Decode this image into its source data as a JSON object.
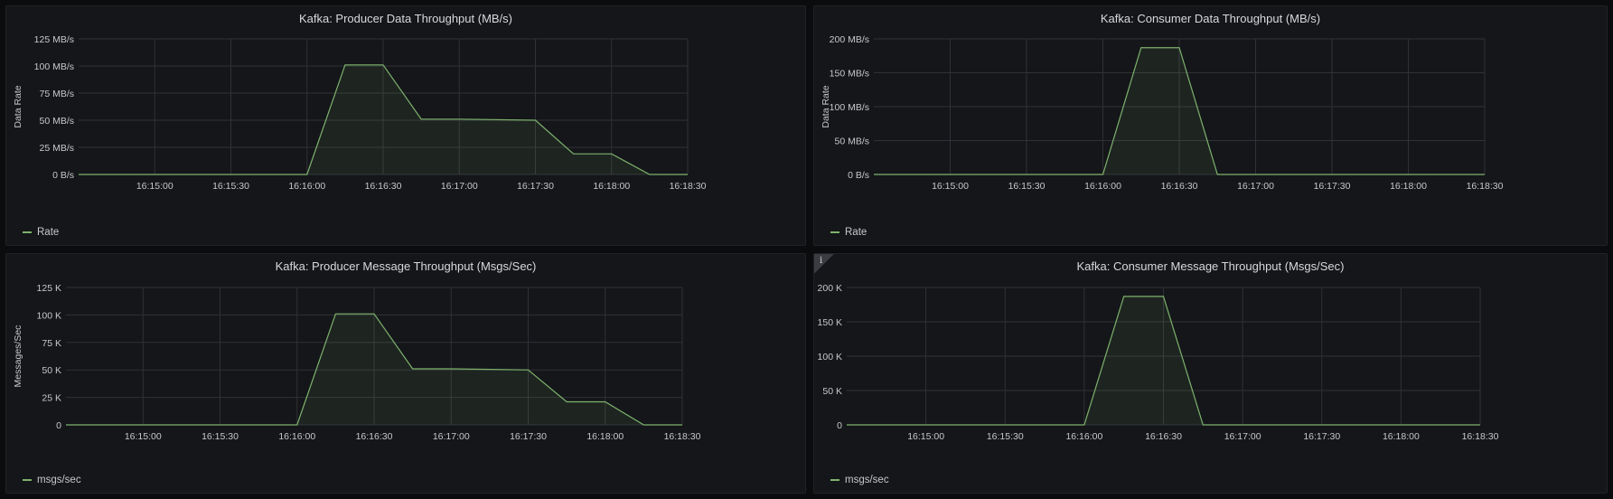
{
  "colors": {
    "background": "#0b0c0e",
    "panel": "#141619",
    "grid": "#2f3136",
    "series": "#7eb26d",
    "fill": "rgba(126,178,109,0.10)",
    "text": "#c7c8ca"
  },
  "panels": [
    {
      "title": "Kafka: Producer Data Throughput (MB/s)",
      "legend": "Rate",
      "info_icon": false
    },
    {
      "title": "Kafka: Consumer Data Throughput (MB/s)",
      "legend": "Rate",
      "info_icon": false
    },
    {
      "title": "Kafka: Producer Message Throughput (Msgs/Sec)",
      "legend": "msgs/sec",
      "info_icon": false
    },
    {
      "title": "Kafka: Consumer Message Throughput (Msgs/Sec)",
      "legend": "msgs/sec",
      "info_icon": true,
      "info_icon_glyph": "i"
    }
  ],
  "chart_data": [
    {
      "type": "area",
      "title": "Kafka: Producer Data Throughput (MB/s)",
      "ylabel": "Data Rate",
      "xlabel": "",
      "x_range": [
        "16:14:30",
        "16:18:30"
      ],
      "x_ticks": [
        "16:15:00",
        "16:15:30",
        "16:16:00",
        "16:16:30",
        "16:17:00",
        "16:17:30",
        "16:18:00",
        "16:18:30"
      ],
      "y_ticks": [
        "0 B/s",
        "25 MB/s",
        "50 MB/s",
        "75 MB/s",
        "100 MB/s",
        "125 MB/s"
      ],
      "ylim": [
        0,
        125
      ],
      "grid": true,
      "legend_position": "bottom-left",
      "series": [
        {
          "name": "Rate",
          "x": [
            "16:14:30",
            "16:16:00",
            "16:16:15",
            "16:16:30",
            "16:16:45",
            "16:17:00",
            "16:17:30",
            "16:17:45",
            "16:18:00",
            "16:18:15",
            "16:18:30"
          ],
          "values": [
            0,
            0,
            101,
            101,
            51,
            51,
            50,
            19,
            19,
            0,
            0
          ]
        }
      ]
    },
    {
      "type": "area",
      "title": "Kafka: Consumer Data Throughput (MB/s)",
      "ylabel": "Data Rate",
      "xlabel": "",
      "x_range": [
        "16:14:30",
        "16:18:30"
      ],
      "x_ticks": [
        "16:15:00",
        "16:15:30",
        "16:16:00",
        "16:16:30",
        "16:17:00",
        "16:17:30",
        "16:18:00",
        "16:18:30"
      ],
      "y_ticks": [
        "0 B/s",
        "50 MB/s",
        "100 MB/s",
        "150 MB/s",
        "200 MB/s"
      ],
      "ylim": [
        0,
        200
      ],
      "grid": true,
      "legend_position": "bottom-left",
      "series": [
        {
          "name": "Rate",
          "x": [
            "16:14:30",
            "16:16:00",
            "16:16:15",
            "16:16:30",
            "16:16:45",
            "16:18:30"
          ],
          "values": [
            0,
            0,
            187,
            187,
            0,
            0
          ]
        }
      ]
    },
    {
      "type": "area",
      "title": "Kafka: Producer Message Throughput (Msgs/Sec)",
      "ylabel": "Messages/Sec",
      "xlabel": "",
      "x_range": [
        "16:14:30",
        "16:18:30"
      ],
      "x_ticks": [
        "16:15:00",
        "16:15:30",
        "16:16:00",
        "16:16:30",
        "16:17:00",
        "16:17:30",
        "16:18:00",
        "16:18:30"
      ],
      "y_ticks": [
        "0",
        "25 K",
        "50 K",
        "75 K",
        "100 K",
        "125 K"
      ],
      "ylim": [
        0,
        125
      ],
      "grid": true,
      "legend_position": "bottom-left",
      "series": [
        {
          "name": "msgs/sec",
          "x": [
            "16:14:30",
            "16:16:00",
            "16:16:15",
            "16:16:30",
            "16:16:45",
            "16:17:00",
            "16:17:30",
            "16:17:45",
            "16:18:00",
            "16:18:15",
            "16:18:30"
          ],
          "values": [
            0,
            0,
            101,
            101,
            51,
            51,
            50,
            21,
            21,
            0,
            0
          ]
        }
      ]
    },
    {
      "type": "area",
      "title": "Kafka: Consumer Message Throughput (Msgs/Sec)",
      "ylabel": "",
      "xlabel": "",
      "x_range": [
        "16:14:30",
        "16:18:30"
      ],
      "x_ticks": [
        "16:15:00",
        "16:15:30",
        "16:16:00",
        "16:16:30",
        "16:17:00",
        "16:17:30",
        "16:18:00",
        "16:18:30"
      ],
      "y_ticks": [
        "0",
        "50 K",
        "100 K",
        "150 K",
        "200 K"
      ],
      "ylim": [
        0,
        200
      ],
      "grid": true,
      "legend_position": "bottom-left",
      "series": [
        {
          "name": "msgs/sec",
          "x": [
            "16:14:30",
            "16:16:00",
            "16:16:15",
            "16:16:30",
            "16:16:45",
            "16:18:30"
          ],
          "values": [
            0,
            0,
            187,
            187,
            0,
            0
          ]
        }
      ]
    }
  ]
}
